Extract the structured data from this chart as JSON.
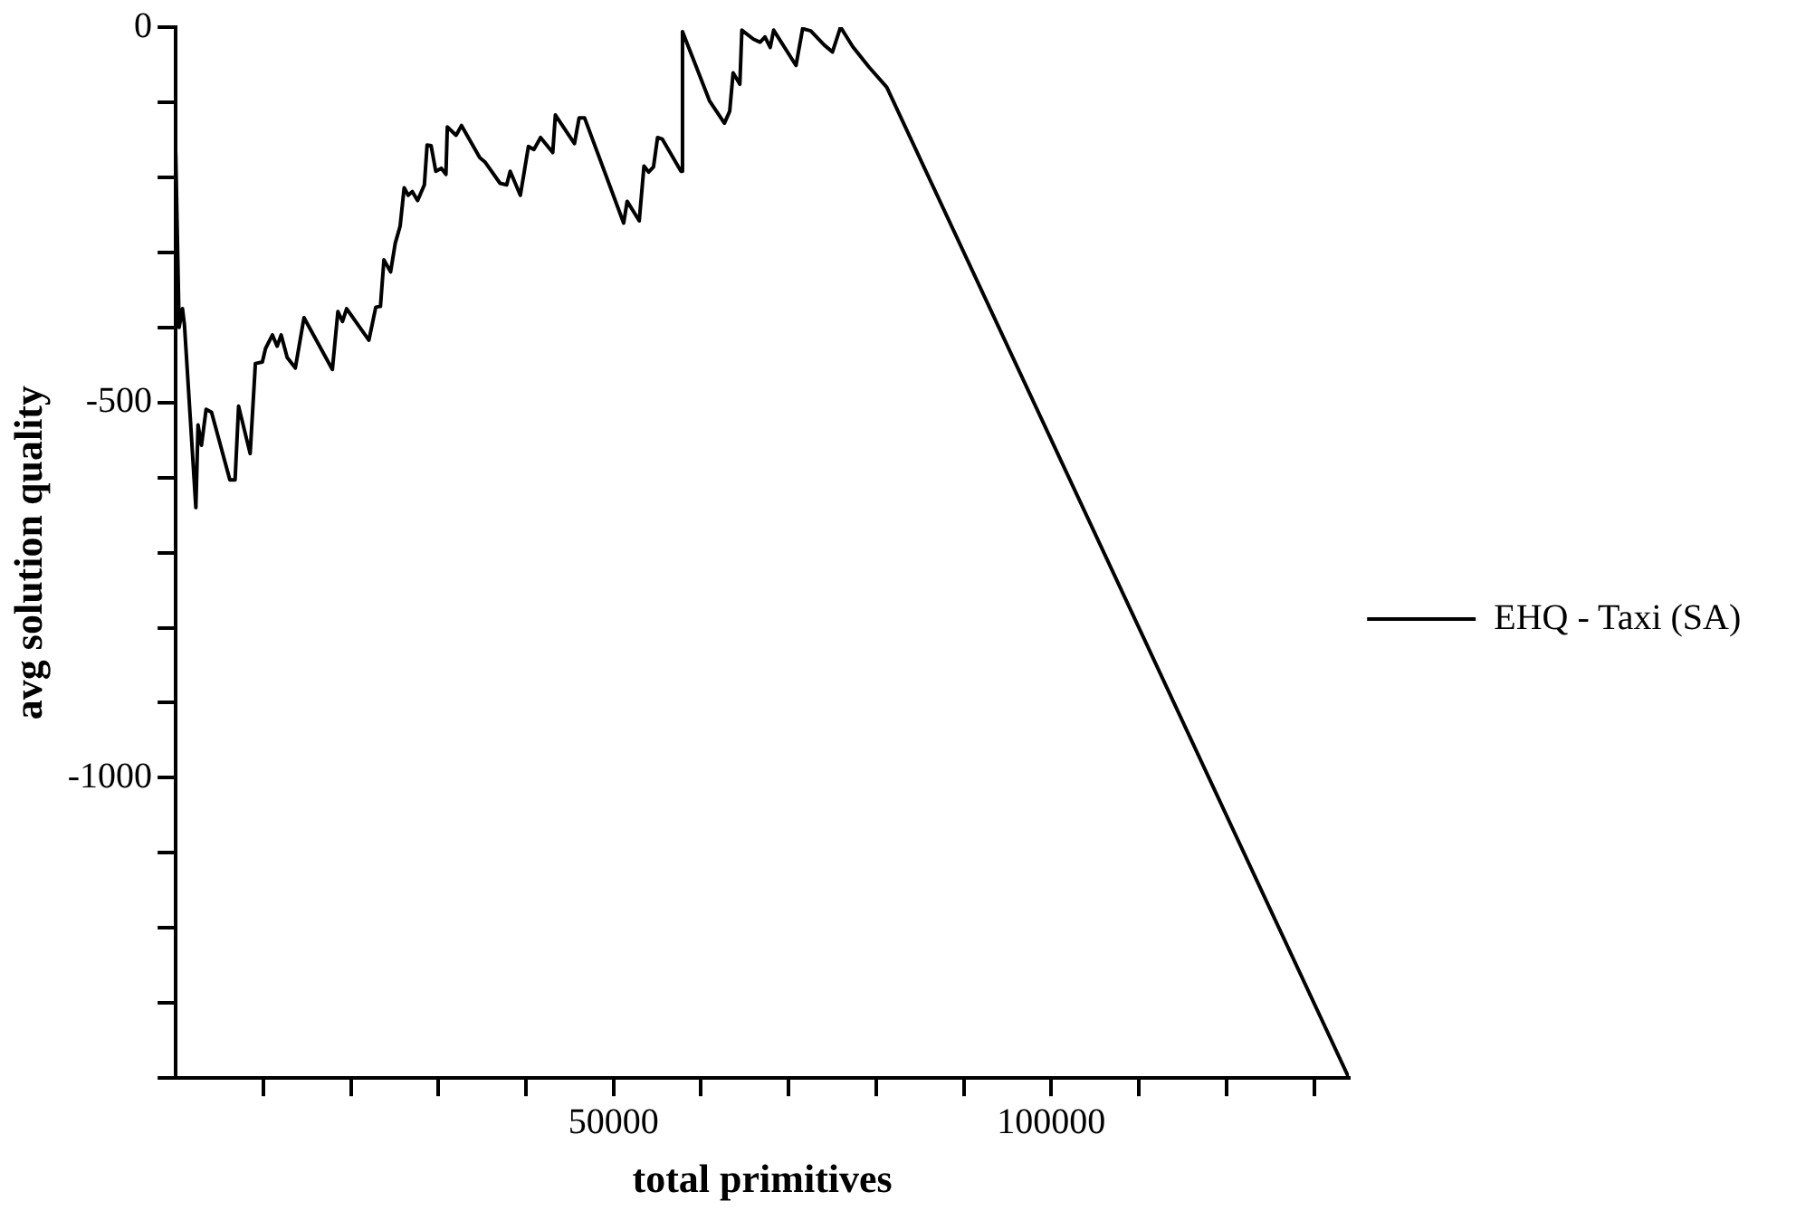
{
  "chart_data": {
    "type": "line",
    "xlabel": "total primitives",
    "ylabel": "avg solution quality",
    "legend": "right",
    "xlim": [
      0,
      134000
    ],
    "ylim": [
      -1400,
      0
    ],
    "xticks": [
      {
        "value": 10000,
        "label": null
      },
      {
        "value": 20000,
        "label": null
      },
      {
        "value": 30000,
        "label": null
      },
      {
        "value": 40000,
        "label": null
      },
      50000,
      {
        "value": 60000,
        "label": null
      },
      {
        "value": 70000,
        "label": null
      },
      {
        "value": 80000,
        "label": null
      },
      {
        "value": 90000,
        "label": null
      },
      100000,
      {
        "value": 110000,
        "label": null
      },
      {
        "value": 120000,
        "label": null
      },
      {
        "value": 130000,
        "label": null
      }
    ],
    "yticks": [
      {
        "value": -1400,
        "label": null
      },
      {
        "value": -1300,
        "label": null
      },
      {
        "value": -1200,
        "label": null
      },
      {
        "value": -1100,
        "label": null
      },
      -1000,
      {
        "value": -900,
        "label": null
      },
      {
        "value": -800,
        "label": null
      },
      {
        "value": -700,
        "label": null
      },
      {
        "value": -600,
        "label": null
      },
      -500,
      {
        "value": -400,
        "label": null
      },
      {
        "value": -300,
        "label": null
      },
      {
        "value": -200,
        "label": null
      },
      {
        "value": -100,
        "label": null
      },
      0
    ],
    "x": [
      0,
      390,
      770,
      1000,
      2300,
      2550,
      2940,
      3470,
      4090,
      6180,
      6780,
      7180,
      8500,
      9100,
      9890,
      10260,
      11040,
      11580,
      12040,
      12730,
      13660,
      14650,
      17890,
      18520,
      19050,
      19520,
      22060,
      22850,
      23380,
      23780,
      24540,
      25070,
      25630,
      26090,
      26550,
      27020,
      27620,
      28400,
      28710,
      29170,
      29700,
      30330,
      30860,
      31020,
      32020,
      32640,
      34730,
      35350,
      37040,
      37800,
      38200,
      39360,
      40280,
      40910,
      41670,
      43060,
      43360,
      45540,
      46070,
      46700,
      51160,
      51560,
      52940,
      53480,
      54010,
      54570,
      55030,
      55560,
      57710,
      57880,
      60960,
      62670,
      63270,
      63660,
      64430,
      64660,
      65980,
      66740,
      67300,
      67900,
      68290,
      70840,
      71600,
      72530,
      74080,
      75010,
      75930,
      77320,
      79170,
      81210,
      134000
    ],
    "series": [
      {
        "name": "EHQ - Taxi (SA)",
        "color": "#000000",
        "values": [
          -167,
          -400,
          -375,
          -397,
          -640,
          -530,
          -557,
          -509,
          -513,
          -603,
          -603,
          -505,
          -568,
          -448,
          -446,
          -428,
          -410,
          -425,
          -410,
          -440,
          -454,
          -387,
          -456,
          -379,
          -392,
          -375,
          -417,
          -373,
          -372,
          -310,
          -326,
          -288,
          -265,
          -214,
          -224,
          -219,
          -231,
          -210,
          -157,
          -158,
          -192,
          -188,
          -196,
          -133,
          -144,
          -131,
          -174,
          -180,
          -208,
          -210,
          -192,
          -224,
          -159,
          -163,
          -147,
          -167,
          -117,
          -155,
          -121,
          -121,
          -261,
          -232,
          -258,
          -185,
          -193,
          -186,
          -147,
          -149,
          -192,
          -6,
          -98,
          -128,
          -112,
          -61,
          -76,
          -4,
          -16,
          -20,
          -13,
          -27,
          -4,
          -51,
          -2,
          -5,
          -24,
          -33,
          0,
          -26,
          -53,
          -80,
          -1400
        ]
      }
    ]
  }
}
